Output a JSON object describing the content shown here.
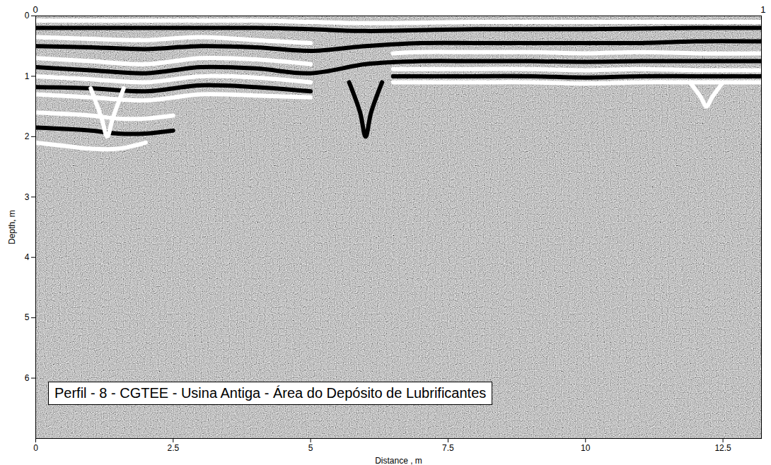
{
  "chart_data": {
    "type": "radargram",
    "title": "Perfil - 8 - CGTEE - Usina Antiga - Área do Depósito de Lubrificantes",
    "x_label": "Distance , m",
    "y_label": "Depth, m",
    "xlim": [
      0,
      13.2
    ],
    "ylim": [
      0,
      7
    ],
    "xticks": [
      0,
      2.5,
      5,
      7.5,
      10,
      12.5
    ],
    "yticks": [
      0,
      1,
      2,
      3,
      4,
      5,
      6
    ],
    "grid": false,
    "annotations": [
      {
        "text": "0"
      },
      {
        "text": "1"
      }
    ],
    "reflectors": [
      {
        "color": "#ffffff",
        "x": [
          0,
          2,
          4,
          5,
          6,
          8,
          10,
          12,
          13.2
        ],
        "depth": [
          0.08,
          0.08,
          0.08,
          0.1,
          0.12,
          0.1,
          0.1,
          0.1,
          0.1
        ]
      },
      {
        "color": "#000000",
        "x": [
          0,
          2,
          4,
          5,
          6,
          8,
          10,
          12,
          13.2
        ],
        "depth": [
          0.2,
          0.2,
          0.2,
          0.22,
          0.25,
          0.22,
          0.22,
          0.2,
          0.2
        ]
      },
      {
        "color": "#ffffff",
        "x": [
          0,
          1,
          2,
          3,
          4,
          5
        ],
        "depth": [
          0.35,
          0.38,
          0.4,
          0.35,
          0.4,
          0.45
        ]
      },
      {
        "color": "#000000",
        "x": [
          0,
          1,
          2,
          3,
          4,
          5,
          6,
          7,
          8,
          9,
          10,
          11,
          12,
          13.2
        ],
        "depth": [
          0.5,
          0.52,
          0.55,
          0.5,
          0.52,
          0.58,
          0.5,
          0.45,
          0.45,
          0.45,
          0.45,
          0.45,
          0.42,
          0.42
        ]
      },
      {
        "color": "#ffffff",
        "x": [
          0,
          1,
          2,
          3,
          4,
          5
        ],
        "depth": [
          0.7,
          0.75,
          0.8,
          0.7,
          0.72,
          0.8
        ]
      },
      {
        "color": "#ffffff",
        "x": [
          6.5,
          7,
          8,
          9,
          10,
          11,
          12,
          13.2
        ],
        "depth": [
          0.62,
          0.6,
          0.6,
          0.6,
          0.62,
          0.6,
          0.62,
          0.62
        ]
      },
      {
        "color": "#000000",
        "x": [
          0,
          1,
          2,
          3,
          4,
          5,
          6,
          7,
          8,
          9,
          10,
          11,
          12,
          13.2
        ],
        "depth": [
          0.85,
          0.9,
          0.95,
          0.85,
          0.87,
          0.95,
          0.8,
          0.75,
          0.75,
          0.75,
          0.76,
          0.75,
          0.75,
          0.75
        ]
      },
      {
        "color": "#ffffff",
        "x": [
          0,
          1,
          2,
          3,
          4,
          5
        ],
        "depth": [
          1.0,
          1.05,
          1.1,
          1.0,
          1.02,
          1.1
        ]
      },
      {
        "color": "#ffffff",
        "x": [
          6.5,
          7,
          8,
          9,
          10,
          11,
          12,
          13.2
        ],
        "depth": [
          0.88,
          0.88,
          0.88,
          0.88,
          0.9,
          0.88,
          0.9,
          0.9
        ]
      },
      {
        "color": "#000000",
        "x": [
          6.5,
          7,
          8,
          9,
          10,
          11,
          12,
          13.2
        ],
        "depth": [
          1.0,
          1.0,
          1.0,
          1.0,
          1.02,
          1.0,
          1.0,
          1.0
        ]
      },
      {
        "color": "#000000",
        "x": [
          0,
          1,
          2,
          3,
          4,
          5
        ],
        "depth": [
          1.18,
          1.2,
          1.25,
          1.15,
          1.18,
          1.25
        ]
      },
      {
        "color": "#ffffff",
        "x": [
          0,
          1,
          2,
          3,
          4,
          5
        ],
        "depth": [
          1.3,
          1.35,
          1.4,
          1.3,
          1.32,
          1.35
        ]
      },
      {
        "color": "#ffffff",
        "x": [
          6.5,
          7,
          8,
          9,
          10,
          11,
          12,
          13.2
        ],
        "depth": [
          1.1,
          1.1,
          1.1,
          1.1,
          1.12,
          1.1,
          1.1,
          1.1
        ]
      },
      {
        "color": "#ffffff",
        "x": [
          0,
          1,
          1.5,
          2,
          2.5
        ],
        "depth": [
          1.6,
          1.65,
          1.7,
          1.7,
          1.65
        ]
      },
      {
        "color": "#000000",
        "x": [
          0,
          1,
          1.5,
          2,
          2.5
        ],
        "depth": [
          1.85,
          1.9,
          1.95,
          1.95,
          1.9
        ]
      },
      {
        "color": "#ffffff",
        "x": [
          0,
          0.5,
          1,
          1.5,
          2
        ],
        "depth": [
          2.1,
          2.15,
          2.2,
          2.2,
          2.1
        ]
      },
      {
        "color": "#ffffff",
        "x": [
          1.0,
          1.2,
          1.3,
          1.4,
          1.6
        ],
        "depth": [
          1.2,
          1.7,
          2.0,
          1.7,
          1.2
        ]
      },
      {
        "color": "#000000",
        "x": [
          5.7,
          5.9,
          6.0,
          6.1,
          6.3
        ],
        "depth": [
          1.1,
          1.6,
          2.0,
          1.6,
          1.1
        ]
      },
      {
        "color": "#ffffff",
        "x": [
          11.9,
          12.1,
          12.2,
          12.3,
          12.5
        ],
        "depth": [
          1.1,
          1.35,
          1.5,
          1.35,
          1.1
        ]
      }
    ]
  }
}
